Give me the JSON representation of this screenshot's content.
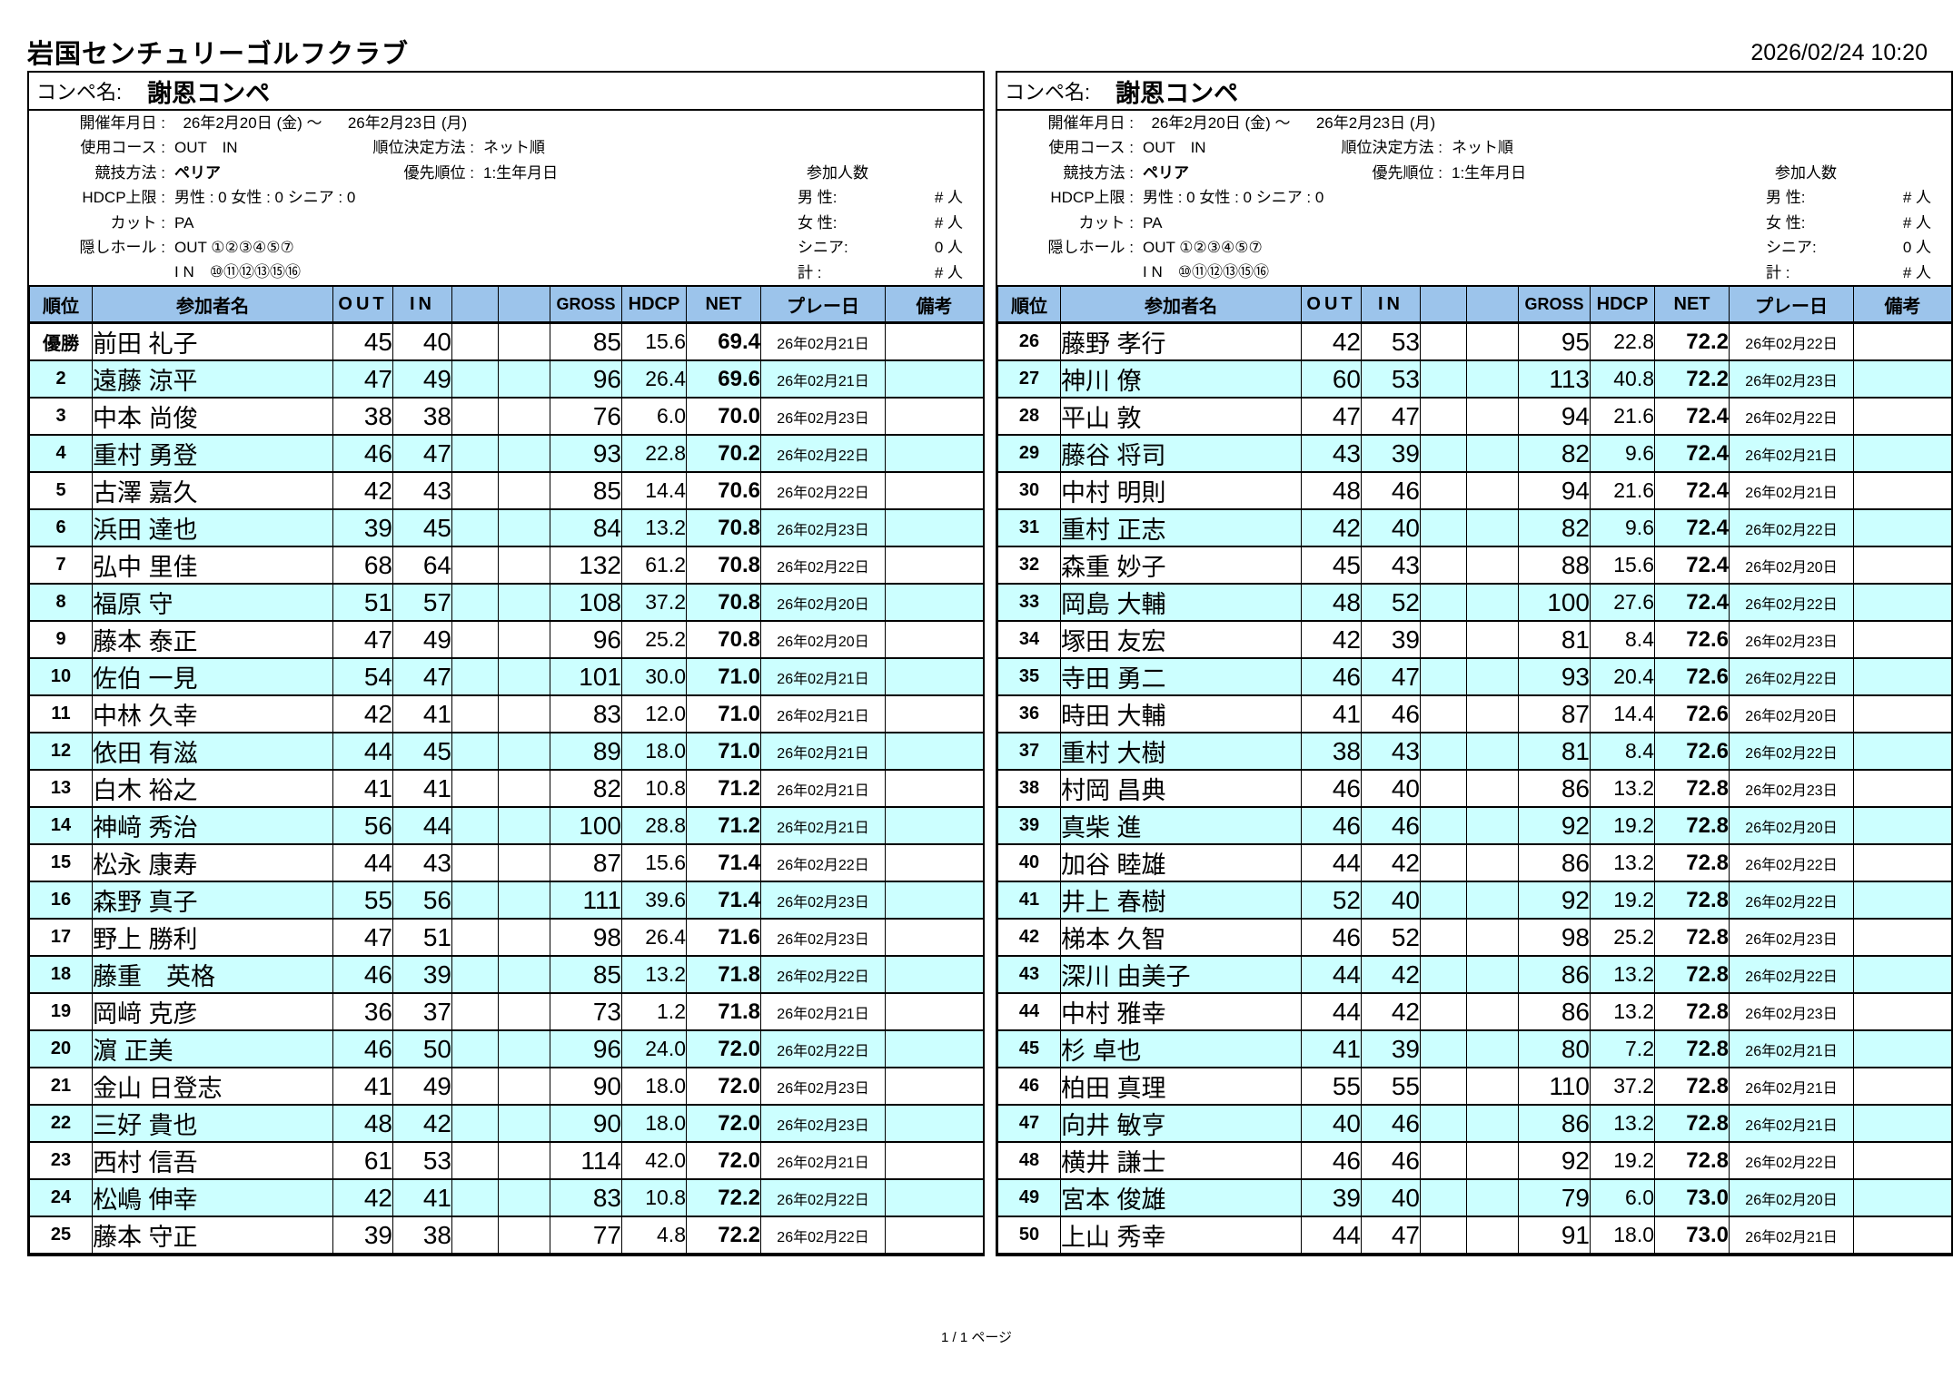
{
  "page": {
    "club_name": "岩国センチュリーゴルフクラブ",
    "printed_at": "2026/02/24 10:20",
    "footer": "1 / 1 ページ"
  },
  "competition": {
    "name_label": "コンペ名:",
    "name": "謝恩コンペ",
    "info": {
      "held_label": "開催年月日 :",
      "held_value": "  26年2月20日 (金) ～      26年2月23日 (月)",
      "course_label": "使用コース :",
      "course_value": "OUT　IN",
      "ranking_label": "順位決定方法 :",
      "ranking_value": "ネット順",
      "method_label": "競技方法 :",
      "method_value": "ペリア",
      "priority_label": "優先順位 :",
      "priority_value": "1:生年月日",
      "hdcp_label": "HDCP上限 :",
      "hdcp_value": "男性 : 0 女性 : 0 シニア : 0",
      "cut_label": "カット :",
      "cut_value": "PA",
      "hidden_label": "隠しホール :",
      "hidden_out": "OUT ①②③④⑤⑦",
      "hidden_in": "I N　⑩⑪⑫⑬⑮⑯"
    },
    "participants": {
      "title": "参加人数",
      "rows": [
        {
          "label": "男 性:",
          "value": "# 人"
        },
        {
          "label": "女 性:",
          "value": "# 人"
        },
        {
          "label": "シニア:",
          "value": "0 人"
        },
        {
          "label": "計 :",
          "value": "# 人"
        }
      ]
    }
  },
  "tables": {
    "columns": [
      "順位",
      "参加者名",
      "OUT",
      "IN",
      "",
      "",
      "GROSS",
      "HDCP",
      "NET",
      "プレー日",
      "備考"
    ],
    "left": {
      "rows": [
        {
          "rank": "優勝",
          "name": "前田 礼子",
          "out": "45",
          "in": "40",
          "gross": "85",
          "hdcp": "15.6",
          "net": "69.4",
          "date": "26年02月21日"
        },
        {
          "rank": "2",
          "name": "遠藤 涼平",
          "out": "47",
          "in": "49",
          "gross": "96",
          "hdcp": "26.4",
          "net": "69.6",
          "date": "26年02月21日"
        },
        {
          "rank": "3",
          "name": "中本 尚俊",
          "out": "38",
          "in": "38",
          "gross": "76",
          "hdcp": "6.0",
          "net": "70.0",
          "date": "26年02月23日"
        },
        {
          "rank": "4",
          "name": "重村 勇登",
          "out": "46",
          "in": "47",
          "gross": "93",
          "hdcp": "22.8",
          "net": "70.2",
          "date": "26年02月22日"
        },
        {
          "rank": "5",
          "name": "古澤 嘉久",
          "out": "42",
          "in": "43",
          "gross": "85",
          "hdcp": "14.4",
          "net": "70.6",
          "date": "26年02月22日"
        },
        {
          "rank": "6",
          "name": "浜田 達也",
          "out": "39",
          "in": "45",
          "gross": "84",
          "hdcp": "13.2",
          "net": "70.8",
          "date": "26年02月23日"
        },
        {
          "rank": "7",
          "name": "弘中 里佳",
          "out": "68",
          "in": "64",
          "gross": "132",
          "hdcp": "61.2",
          "net": "70.8",
          "date": "26年02月22日"
        },
        {
          "rank": "8",
          "name": "福原 守",
          "out": "51",
          "in": "57",
          "gross": "108",
          "hdcp": "37.2",
          "net": "70.8",
          "date": "26年02月20日"
        },
        {
          "rank": "9",
          "name": "藤本 泰正",
          "out": "47",
          "in": "49",
          "gross": "96",
          "hdcp": "25.2",
          "net": "70.8",
          "date": "26年02月20日"
        },
        {
          "rank": "10",
          "name": "佐伯 一見",
          "out": "54",
          "in": "47",
          "gross": "101",
          "hdcp": "30.0",
          "net": "71.0",
          "date": "26年02月21日"
        },
        {
          "rank": "11",
          "name": "中林 久幸",
          "out": "42",
          "in": "41",
          "gross": "83",
          "hdcp": "12.0",
          "net": "71.0",
          "date": "26年02月21日"
        },
        {
          "rank": "12",
          "name": "依田 有滋",
          "out": "44",
          "in": "45",
          "gross": "89",
          "hdcp": "18.0",
          "net": "71.0",
          "date": "26年02月21日"
        },
        {
          "rank": "13",
          "name": "白木 裕之",
          "out": "41",
          "in": "41",
          "gross": "82",
          "hdcp": "10.8",
          "net": "71.2",
          "date": "26年02月21日"
        },
        {
          "rank": "14",
          "name": "神﨑 秀治",
          "out": "56",
          "in": "44",
          "gross": "100",
          "hdcp": "28.8",
          "net": "71.2",
          "date": "26年02月21日"
        },
        {
          "rank": "15",
          "name": "松永 康寿",
          "out": "44",
          "in": "43",
          "gross": "87",
          "hdcp": "15.6",
          "net": "71.4",
          "date": "26年02月22日"
        },
        {
          "rank": "16",
          "name": "森野 真子",
          "out": "55",
          "in": "56",
          "gross": "111",
          "hdcp": "39.6",
          "net": "71.4",
          "date": "26年02月23日"
        },
        {
          "rank": "17",
          "name": "野上 勝利",
          "out": "47",
          "in": "51",
          "gross": "98",
          "hdcp": "26.4",
          "net": "71.6",
          "date": "26年02月23日"
        },
        {
          "rank": "18",
          "name": "藤重　英格",
          "out": "46",
          "in": "39",
          "gross": "85",
          "hdcp": "13.2",
          "net": "71.8",
          "date": "26年02月22日"
        },
        {
          "rank": "19",
          "name": "岡﨑 克彦",
          "out": "36",
          "in": "37",
          "gross": "73",
          "hdcp": "1.2",
          "net": "71.8",
          "date": "26年02月21日"
        },
        {
          "rank": "20",
          "name": "濵 正美",
          "out": "46",
          "in": "50",
          "gross": "96",
          "hdcp": "24.0",
          "net": "72.0",
          "date": "26年02月22日"
        },
        {
          "rank": "21",
          "name": "金山 日登志",
          "out": "41",
          "in": "49",
          "gross": "90",
          "hdcp": "18.0",
          "net": "72.0",
          "date": "26年02月23日"
        },
        {
          "rank": "22",
          "name": "三好 貴也",
          "out": "48",
          "in": "42",
          "gross": "90",
          "hdcp": "18.0",
          "net": "72.0",
          "date": "26年02月23日"
        },
        {
          "rank": "23",
          "name": "西村 信吾",
          "out": "61",
          "in": "53",
          "gross": "114",
          "hdcp": "42.0",
          "net": "72.0",
          "date": "26年02月21日"
        },
        {
          "rank": "24",
          "name": "松嶋 伸幸",
          "out": "42",
          "in": "41",
          "gross": "83",
          "hdcp": "10.8",
          "net": "72.2",
          "date": "26年02月22日"
        },
        {
          "rank": "25",
          "name": "藤本 守正",
          "out": "39",
          "in": "38",
          "gross": "77",
          "hdcp": "4.8",
          "net": "72.2",
          "date": "26年02月22日"
        }
      ]
    },
    "right": {
      "rows": [
        {
          "rank": "26",
          "name": "藤野 孝行",
          "out": "42",
          "in": "53",
          "gross": "95",
          "hdcp": "22.8",
          "net": "72.2",
          "date": "26年02月22日"
        },
        {
          "rank": "27",
          "name": "神川 僚",
          "out": "60",
          "in": "53",
          "gross": "113",
          "hdcp": "40.8",
          "net": "72.2",
          "date": "26年02月23日"
        },
        {
          "rank": "28",
          "name": "平山 敦",
          "out": "47",
          "in": "47",
          "gross": "94",
          "hdcp": "21.6",
          "net": "72.4",
          "date": "26年02月22日"
        },
        {
          "rank": "29",
          "name": "藤谷 将司",
          "out": "43",
          "in": "39",
          "gross": "82",
          "hdcp": "9.6",
          "net": "72.4",
          "date": "26年02月21日"
        },
        {
          "rank": "30",
          "name": "中村 明則",
          "out": "48",
          "in": "46",
          "gross": "94",
          "hdcp": "21.6",
          "net": "72.4",
          "date": "26年02月21日"
        },
        {
          "rank": "31",
          "name": "重村 正志",
          "out": "42",
          "in": "40",
          "gross": "82",
          "hdcp": "9.6",
          "net": "72.4",
          "date": "26年02月22日"
        },
        {
          "rank": "32",
          "name": "森重 妙子",
          "out": "45",
          "in": "43",
          "gross": "88",
          "hdcp": "15.6",
          "net": "72.4",
          "date": "26年02月20日"
        },
        {
          "rank": "33",
          "name": "岡島 大輔",
          "out": "48",
          "in": "52",
          "gross": "100",
          "hdcp": "27.6",
          "net": "72.4",
          "date": "26年02月22日"
        },
        {
          "rank": "34",
          "name": "塚田 友宏",
          "out": "42",
          "in": "39",
          "gross": "81",
          "hdcp": "8.4",
          "net": "72.6",
          "date": "26年02月23日"
        },
        {
          "rank": "35",
          "name": "寺田 勇二",
          "out": "46",
          "in": "47",
          "gross": "93",
          "hdcp": "20.4",
          "net": "72.6",
          "date": "26年02月22日"
        },
        {
          "rank": "36",
          "name": "時田 大輔",
          "out": "41",
          "in": "46",
          "gross": "87",
          "hdcp": "14.4",
          "net": "72.6",
          "date": "26年02月20日"
        },
        {
          "rank": "37",
          "name": "重村 大樹",
          "out": "38",
          "in": "43",
          "gross": "81",
          "hdcp": "8.4",
          "net": "72.6",
          "date": "26年02月22日"
        },
        {
          "rank": "38",
          "name": "村岡 昌典",
          "out": "46",
          "in": "40",
          "gross": "86",
          "hdcp": "13.2",
          "net": "72.8",
          "date": "26年02月23日"
        },
        {
          "rank": "39",
          "name": "真柴 進",
          "out": "46",
          "in": "46",
          "gross": "92",
          "hdcp": "19.2",
          "net": "72.8",
          "date": "26年02月20日"
        },
        {
          "rank": "40",
          "name": "加谷 睦雄",
          "out": "44",
          "in": "42",
          "gross": "86",
          "hdcp": "13.2",
          "net": "72.8",
          "date": "26年02月22日"
        },
        {
          "rank": "41",
          "name": "井上 春樹",
          "out": "52",
          "in": "40",
          "gross": "92",
          "hdcp": "19.2",
          "net": "72.8",
          "date": "26年02月22日"
        },
        {
          "rank": "42",
          "name": "梯本 久智",
          "out": "46",
          "in": "52",
          "gross": "98",
          "hdcp": "25.2",
          "net": "72.8",
          "date": "26年02月23日"
        },
        {
          "rank": "43",
          "name": "深川 由美子",
          "out": "44",
          "in": "42",
          "gross": "86",
          "hdcp": "13.2",
          "net": "72.8",
          "date": "26年02月22日"
        },
        {
          "rank": "44",
          "name": "中村 雅幸",
          "out": "44",
          "in": "42",
          "gross": "86",
          "hdcp": "13.2",
          "net": "72.8",
          "date": "26年02月23日"
        },
        {
          "rank": "45",
          "name": "杉 卓也",
          "out": "41",
          "in": "39",
          "gross": "80",
          "hdcp": "7.2",
          "net": "72.8",
          "date": "26年02月21日"
        },
        {
          "rank": "46",
          "name": "柏田 真理",
          "out": "55",
          "in": "55",
          "gross": "110",
          "hdcp": "37.2",
          "net": "72.8",
          "date": "26年02月21日"
        },
        {
          "rank": "47",
          "name": "向井 敏亨",
          "out": "40",
          "in": "46",
          "gross": "86",
          "hdcp": "13.2",
          "net": "72.8",
          "date": "26年02月21日"
        },
        {
          "rank": "48",
          "name": "横井 謙士",
          "out": "46",
          "in": "46",
          "gross": "92",
          "hdcp": "19.2",
          "net": "72.8",
          "date": "26年02月22日"
        },
        {
          "rank": "49",
          "name": "宮本 俊雄",
          "out": "39",
          "in": "40",
          "gross": "79",
          "hdcp": "6.0",
          "net": "73.0",
          "date": "26年02月20日"
        },
        {
          "rank": "50",
          "name": "上山 秀幸",
          "out": "44",
          "in": "47",
          "gross": "91",
          "hdcp": "18.0",
          "net": "73.0",
          "date": "26年02月21日"
        }
      ]
    }
  }
}
